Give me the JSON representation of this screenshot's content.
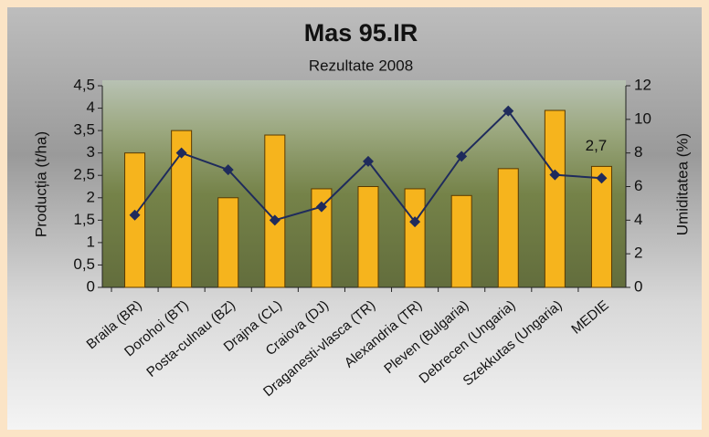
{
  "chart_data": {
    "type": "bar",
    "title": "Mas 95.IR",
    "subtitle": "Rezultate 2008",
    "y_label": "Producția (t/ha)",
    "y2_label": "Umiditatea (%)",
    "categories": [
      "Braila (BR)",
      "Dorohoi (BT)",
      "Posta-culnau (BZ)",
      "Drajna (CL)",
      "Craiova (DJ)",
      "Draganesti-vlasca (TR)",
      "Alexandria (TR)",
      "Pleven (Bulgaria)",
      "Debrecen (Ungaria)",
      "Szekkutas (Ungaria)",
      "MEDIE"
    ],
    "series": [
      {
        "type": "bar",
        "color": "#f6b41d",
        "values": [
          3.0,
          3.5,
          2.0,
          3.4,
          2.2,
          2.25,
          2.2,
          2.05,
          2.65,
          3.95,
          2.7
        ],
        "value_labels": [
          null,
          null,
          null,
          null,
          null,
          null,
          null,
          null,
          null,
          null,
          "2,7"
        ]
      },
      {
        "type": "line",
        "axis": "y2",
        "color": "#1f2b5c",
        "values": [
          4.3,
          8.0,
          7.0,
          4.0,
          4.8,
          7.5,
          3.9,
          7.8,
          10.5,
          6.7,
          6.5
        ]
      }
    ],
    "ylim": [
      0,
      4.5
    ],
    "yticks": [
      0,
      {
        "value": 0.5,
        "label": "0,5"
      },
      1,
      {
        "value": 1.5,
        "label": "1,5"
      },
      2,
      {
        "value": 2.5,
        "label": "2,5"
      },
      3,
      {
        "value": 3.5,
        "label": "3,5"
      },
      4,
      {
        "value": 4.5,
        "label": "4,5"
      }
    ],
    "y2lim": [
      0,
      12
    ],
    "y2ticks": [
      0,
      2,
      4,
      6,
      8,
      10,
      12
    ],
    "grid": false
  }
}
